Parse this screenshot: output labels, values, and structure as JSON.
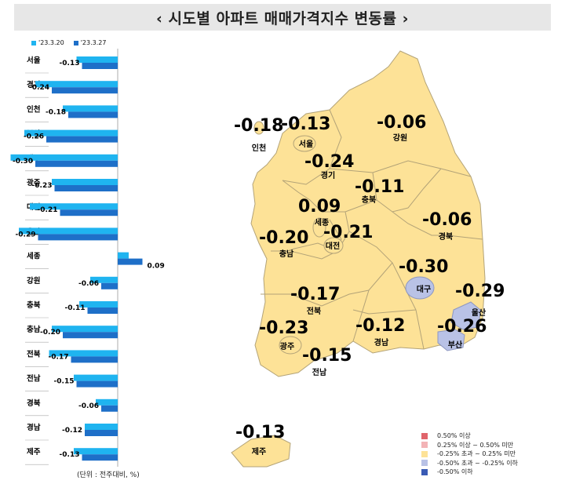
{
  "title": "‹ 시도별 아파트 매매가격지수 변동률 ›",
  "unit_note": "(단위 : 전주대비, %)",
  "chart_data": {
    "type": "bar",
    "orientation": "horizontal",
    "categories": [
      "서울",
      "경기",
      "인천",
      "부산",
      "대구",
      "광주",
      "대전",
      "울산",
      "세종",
      "강원",
      "충북",
      "충남",
      "전북",
      "전남",
      "경북",
      "경남",
      "제주"
    ],
    "series": [
      {
        "name": "'23.3.20",
        "color": "#1fb4f0",
        "values": [
          -0.15,
          -0.3,
          -0.2,
          -0.34,
          -0.39,
          -0.24,
          -0.32,
          -0.36,
          0.04,
          -0.1,
          -0.14,
          -0.24,
          -0.25,
          -0.16,
          -0.08,
          -0.12,
          -0.16
        ]
      },
      {
        "name": "'23.3.27",
        "color": "#1e6fc8",
        "values": [
          -0.13,
          -0.24,
          -0.18,
          -0.26,
          -0.3,
          -0.23,
          -0.21,
          -0.29,
          0.09,
          -0.06,
          -0.11,
          -0.2,
          -0.17,
          -0.15,
          -0.06,
          -0.12,
          -0.13
        ]
      }
    ],
    "data_labels": [
      "-0.13",
      "-0.24",
      "-0.18",
      "-0.26",
      "-0.30",
      "-0.23",
      "-0.21",
      "-0.29",
      "0.09",
      "-0.06",
      "-0.11",
      "-0.20",
      "-0.17",
      "-0.15",
      "-0.06",
      "-0.12",
      "-0.13"
    ],
    "grid": false,
    "legend": "top-left"
  },
  "map": {
    "regions": [
      {
        "name": "인천",
        "value": "-0.18",
        "color": "#fde297"
      },
      {
        "name": "서울",
        "value": "-0.13",
        "color": "#fde297"
      },
      {
        "name": "강원",
        "value": "-0.06",
        "color": "#fde297"
      },
      {
        "name": "경기",
        "value": "-0.24",
        "color": "#fde297"
      },
      {
        "name": "충북",
        "value": "-0.11",
        "color": "#fde297"
      },
      {
        "name": "세종",
        "value": "0.09",
        "color": "#fde297"
      },
      {
        "name": "경북",
        "value": "-0.06",
        "color": "#fde297"
      },
      {
        "name": "충남",
        "value": "-0.20",
        "color": "#fde297"
      },
      {
        "name": "대전",
        "value": "-0.21",
        "color": "#fde297"
      },
      {
        "name": "대구",
        "value": "-0.30",
        "color": "#b9c2e6"
      },
      {
        "name": "울산",
        "value": "-0.29",
        "color": "#b9c2e6"
      },
      {
        "name": "전북",
        "value": "-0.17",
        "color": "#fde297"
      },
      {
        "name": "경남",
        "value": "-0.12",
        "color": "#fde297"
      },
      {
        "name": "부산",
        "value": "-0.26",
        "color": "#b9c2e6"
      },
      {
        "name": "광주",
        "value": "-0.23",
        "color": "#fde297"
      },
      {
        "name": "전남",
        "value": "-0.15",
        "color": "#fde297"
      },
      {
        "name": "제주",
        "value": "-0.13",
        "color": "#fde297"
      }
    ],
    "legend": [
      {
        "label": "0.50% 이상",
        "color": "#e0646b"
      },
      {
        "label": "0.25% 이상 ~ 0.50% 미만",
        "color": "#f3b3b6"
      },
      {
        "label": "-0.25% 초과 ~ 0.25% 미만",
        "color": "#fde297"
      },
      {
        "label": "-0.50% 초과 ~ -0.25% 이하",
        "color": "#b9c2e6"
      },
      {
        "label": "-0.50% 이하",
        "color": "#3a5bb5"
      }
    ]
  }
}
